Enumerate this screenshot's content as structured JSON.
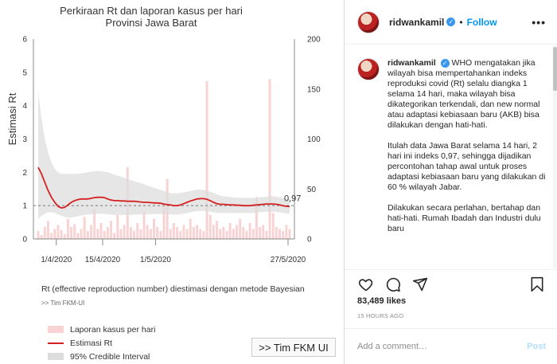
{
  "chart": {
    "title_line1": "Perkiraan Rt dan laporan kasus per hari",
    "title_line2": "Provinsi Jawa Barat",
    "caption": "Rt (effective reproduction number) diestimasi dengan metode Bayesian",
    "source": ">> Tim FKM-UI",
    "legend": [
      {
        "label": "Laporan kasus per hari",
        "color": "#f9d3d3"
      },
      {
        "label": "Estimasi Rt",
        "color": "#d42020"
      },
      {
        "label": "95% Credible Interval",
        "color": "#dcdcdc"
      }
    ],
    "badge": ">> Tim FKM UI"
  },
  "chart_data": {
    "type": "line",
    "ylabel": "Estimasi Rt",
    "y_ticks": [
      "0",
      "1",
      "2",
      "3",
      "4",
      "5",
      "6"
    ],
    "y2_ticks": [
      "0",
      "50",
      "100",
      "150",
      "200"
    ],
    "x_ticks": [
      "1/4/2020",
      "15/4/2020",
      "1/5/2020",
      "27/5/2020"
    ],
    "ylim": [
      0,
      6
    ],
    "y2lim": [
      0,
      200
    ],
    "reference_line": 1,
    "last_value_label": "0,97",
    "rt": [
      2.15,
      1.95,
      1.7,
      1.45,
      1.25,
      1.1,
      0.98,
      0.93,
      0.95,
      1.02,
      1.1,
      1.15,
      1.18,
      1.2,
      1.2,
      1.2,
      1.22,
      1.24,
      1.25,
      1.25,
      1.24,
      1.2,
      1.17,
      1.15,
      1.15,
      1.14,
      1.14,
      1.13,
      1.13,
      1.13,
      1.12,
      1.11,
      1.1,
      1.1,
      1.09,
      1.08,
      1.08,
      1.07,
      1.05,
      1.03,
      1.02,
      1.0,
      1.0,
      1.02,
      1.06,
      1.1,
      1.14,
      1.17,
      1.2,
      1.21,
      1.21,
      1.19,
      1.15,
      1.1,
      1.06,
      1.04,
      1.04,
      1.03,
      1.02,
      1.02,
      1.01,
      1.01,
      1.0,
      1.0,
      1.0,
      1.01,
      1.02,
      1.03,
      1.04,
      1.05,
      1.05,
      1.05,
      1.04,
      1.02,
      1.0,
      0.98,
      0.97
    ],
    "ci_upper": [
      4.4,
      3.6,
      3.0,
      2.6,
      2.3,
      2.1,
      2.0,
      1.95,
      1.95,
      1.95,
      1.95,
      1.95,
      1.96,
      1.97,
      1.98,
      2.0,
      2.02,
      2.03,
      2.04,
      2.03,
      2.02,
      2.0,
      1.97,
      1.93,
      1.9,
      1.87,
      1.84,
      1.8,
      1.77,
      1.73,
      1.7,
      1.67,
      1.64,
      1.6,
      1.57,
      1.54,
      1.5,
      1.47,
      1.44,
      1.4,
      1.38,
      1.37,
      1.37,
      1.38,
      1.4,
      1.42,
      1.44,
      1.46,
      1.48,
      1.48,
      1.47,
      1.45,
      1.42,
      1.38,
      1.34,
      1.3,
      1.28,
      1.27,
      1.26,
      1.25,
      1.24,
      1.24,
      1.23,
      1.23,
      1.23,
      1.23,
      1.24,
      1.25,
      1.26,
      1.27,
      1.28,
      1.28,
      1.27,
      1.25,
      1.23,
      1.21,
      1.2
    ],
    "ci_lower": [
      0.6,
      0.7,
      0.75,
      0.8,
      0.8,
      0.78,
      0.74,
      0.7,
      0.66,
      0.64,
      0.64,
      0.66,
      0.68,
      0.7,
      0.72,
      0.73,
      0.74,
      0.75,
      0.76,
      0.76,
      0.75,
      0.74,
      0.73,
      0.72,
      0.72,
      0.72,
      0.72,
      0.72,
      0.72,
      0.73,
      0.73,
      0.73,
      0.74,
      0.74,
      0.74,
      0.75,
      0.75,
      0.75,
      0.75,
      0.74,
      0.74,
      0.73,
      0.73,
      0.74,
      0.76,
      0.78,
      0.8,
      0.82,
      0.83,
      0.84,
      0.84,
      0.83,
      0.82,
      0.8,
      0.79,
      0.78,
      0.78,
      0.78,
      0.78,
      0.78,
      0.78,
      0.78,
      0.78,
      0.78,
      0.78,
      0.78,
      0.79,
      0.8,
      0.81,
      0.82,
      0.82,
      0.82,
      0.81,
      0.8,
      0.78,
      0.77,
      0.76
    ],
    "cases": [
      8,
      4,
      12,
      18,
      6,
      10,
      14,
      9,
      5,
      20,
      12,
      15,
      6,
      10,
      22,
      8,
      14,
      30,
      10,
      16,
      8,
      12,
      18,
      6,
      24,
      10,
      14,
      72,
      12,
      8,
      16,
      10,
      28,
      14,
      10,
      20,
      12,
      8,
      34,
      60,
      10,
      16,
      12,
      8,
      14,
      10,
      20,
      12,
      14,
      10,
      8,
      158,
      24,
      14,
      18,
      10,
      12,
      8,
      16,
      10,
      14,
      20,
      12,
      8,
      16,
      10,
      42,
      12,
      14,
      8,
      160,
      26,
      12,
      10,
      8,
      14,
      10
    ]
  },
  "post": {
    "username": "ridwankamil",
    "verified_mark": "✓",
    "follow_label": "Follow",
    "more_label": "•••",
    "comment_username": "ridwankamil",
    "paragraphs": [
      "WHO mengatakan jika wilayah bisa mempertahankan indeks reproduksi covid (Rt) selalu diangka 1 selama 14 hari, maka wilayah bisa dikategorikan terkendali, dan new normal atau adaptasi kebiasaan baru (AKB) bisa dilakukan dengan hati-hati.",
      "Itulah data Jawa Barat selama 14 hari, 2 hari ini indeks 0,97, sehingga dijadikan percontohan tahap awal untuk proses adaptasi kebiasaan baru yang dilakukan di 60 % wilayah Jabar.",
      "Dilakukan secara perlahan, bertahap dan hati-hati. Rumah Ibadah dan Industri dulu baru"
    ],
    "likes": "83,489 likes",
    "time_ago": "15 HOURS AGO",
    "comment_placeholder": "Add a comment…",
    "post_button": "Post"
  },
  "colors": {
    "rt_line": "#d42020",
    "ci_band": "#dcdcdc",
    "cases_bar": "#f9d3d3",
    "link": "#0095f6"
  },
  "icons": [
    "heart-icon",
    "comment-icon",
    "share-icon",
    "bookmark-icon",
    "verified-icon"
  ]
}
